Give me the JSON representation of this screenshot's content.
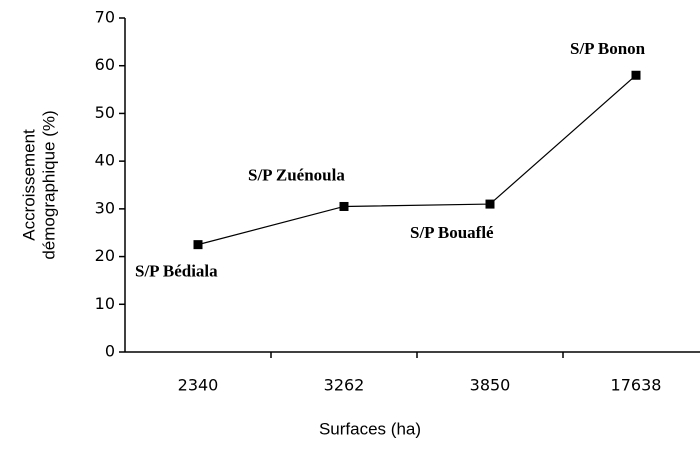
{
  "chart_data": {
    "type": "line",
    "xlabel": "Surfaces (ha)",
    "ylabel": [
      "Accroissement",
      "démographique (%)"
    ],
    "categories": [
      "2340",
      "3262",
      "3850",
      "17638"
    ],
    "series": [
      {
        "name": null,
        "color": "#000000",
        "values": [
          22.5,
          30.5,
          31,
          58
        ]
      }
    ],
    "point_labels": [
      "S/P Bédiala",
      "S/P Zuénoula",
      "S/P Bouaflé",
      "S/P Bonon"
    ],
    "ylim": [
      0,
      70
    ],
    "yticks": [
      0,
      10,
      20,
      30,
      40,
      50,
      60,
      70
    ],
    "grid": false
  }
}
